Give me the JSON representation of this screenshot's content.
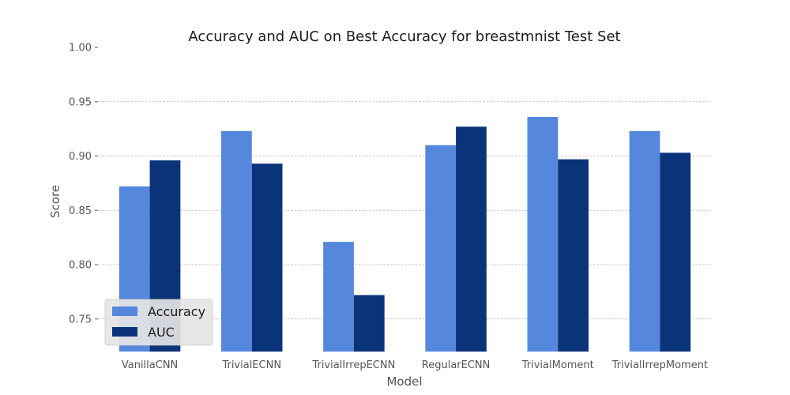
{
  "chart_data": {
    "type": "bar",
    "title": "Accuracy and AUC on Best Accuracy for breastmnist Test Set",
    "xlabel": "Model",
    "ylabel": "Score",
    "categories": [
      "VanillaCNN",
      "TrivialECNN",
      "TrivialIrrepECNN",
      "RegularECNN",
      "TrivialMoment",
      "TrivialIrrepMoment"
    ],
    "series": [
      {
        "name": "Accuracy",
        "color": "#5588dd",
        "values": [
          0.872,
          0.923,
          0.821,
          0.91,
          0.936,
          0.923
        ]
      },
      {
        "name": "AUC",
        "color": "#0a337a",
        "values": [
          0.896,
          0.893,
          0.772,
          0.927,
          0.897,
          0.903
        ]
      }
    ],
    "ylim": [
      0.72,
      1.0
    ],
    "yticks": [
      "0.75",
      "0.80",
      "0.85",
      "0.90",
      "0.95",
      "1.00"
    ],
    "grid": true,
    "legend_position": "bottom-left"
  }
}
